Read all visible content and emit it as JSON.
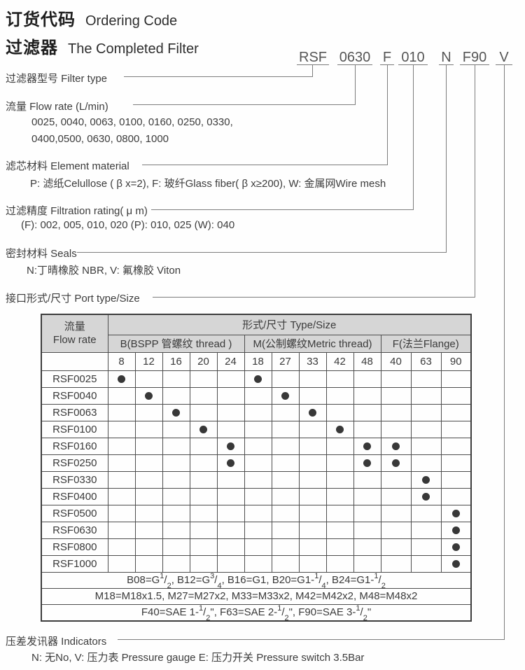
{
  "header": {
    "title_cn": "订货代码",
    "title_en": "Ordering Code",
    "subtitle_cn": "过滤器",
    "subtitle_en": "The Completed Filter"
  },
  "ordering_code": {
    "parts": [
      "RSF",
      "0630",
      "F",
      "010",
      "N",
      "F90",
      "V"
    ]
  },
  "sections": {
    "filter_type": {
      "label": "过滤器型号 Filter type"
    },
    "flow_rate": {
      "label": "流量 Flow rate (L/min)",
      "line1": "0025, 0040, 0063, 0100, 0160, 0250, 0330,",
      "line2": "0400,0500, 0630, 0800, 1000"
    },
    "element_material": {
      "label": "滤芯材料 Element material",
      "line1": "P: 滤纸Celullose ( β x=2),  F: 玻纤Glass fiber( β x≥200), W: 金属网Wire mesh"
    },
    "filtration_rating": {
      "label": "过滤精度 Filtration rating( μ m)",
      "line1": "(F): 002, 005, 010, 020 (P): 010, 025 (W): 040"
    },
    "seals": {
      "label": "密封材料 Seals",
      "line1": "N:丁晴橡胶 NBR,   V: 氟橡胶 Viton"
    },
    "port_type": {
      "label": "接口形式/尺寸 Port type/Size"
    },
    "indicators": {
      "label": "压差发讯器 Indicators",
      "line1": "N: 无No,  V: 压力表 Pressure gauge  E: 压力开关 Pressure switch 3.5Bar"
    }
  },
  "table": {
    "flow_header_cn": "流量",
    "flow_header_en": "Flow rate",
    "type_size_header": "形式/尺寸 Type/Size",
    "groups": [
      {
        "label": "B(BSPP 管螺纹 thread )",
        "span": 5
      },
      {
        "label": "M(公制螺纹Metric thread)",
        "span": 5
      },
      {
        "label": "F(法兰Flange)",
        "span": 3
      }
    ],
    "sizes": [
      "8",
      "12",
      "16",
      "20",
      "24",
      "18",
      "27",
      "33",
      "42",
      "48",
      "40",
      "63",
      "90"
    ],
    "rows": [
      {
        "model": "RSF0025",
        "dots": [
          0,
          5
        ]
      },
      {
        "model": "RSF0040",
        "dots": [
          1,
          6
        ]
      },
      {
        "model": "RSF0063",
        "dots": [
          2,
          7
        ]
      },
      {
        "model": "RSF0100",
        "dots": [
          3,
          8
        ]
      },
      {
        "model": "RSF0160",
        "dots": [
          4,
          9,
          10
        ]
      },
      {
        "model": "RSF0250",
        "dots": [
          4,
          9,
          10
        ]
      },
      {
        "model": "RSF0330",
        "dots": [
          11
        ]
      },
      {
        "model": "RSF0400",
        "dots": [
          11
        ]
      },
      {
        "model": "RSF0500",
        "dots": [
          12
        ]
      },
      {
        "model": "RSF0630",
        "dots": [
          12
        ]
      },
      {
        "model": "RSF0800",
        "dots": [
          12
        ]
      },
      {
        "model": "RSF1000",
        "dots": [
          12
        ]
      }
    ],
    "footnotes": [
      "B08=G{1/2},  B12=G{3/4}, B16=G1, B20=G1-{1/4}, B24=G1-{1/2}",
      "M18=M18x1.5, M27=M27x2, M33=M33x2, M42=M42x2, M48=M48x2",
      "F40=SAE 1-{1/2}\",  F63=SAE 2-{1/2}\",  F90=SAE 3-{1/2}\""
    ]
  },
  "colors": {
    "header_gray": "#d6d6d6",
    "line_gray": "#7d7d7d",
    "text": "#3f3f3f",
    "dot": "#383838"
  }
}
